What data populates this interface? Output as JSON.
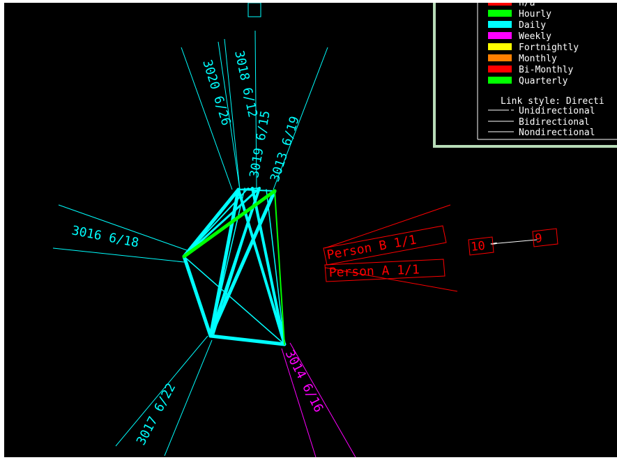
{
  "colors": {
    "background": "#000000",
    "cyan": "#00ffff",
    "green": "#00ff00",
    "magenta": "#ff00ff",
    "red": "#ff0000",
    "white": "#ffffff",
    "legend_border": "#b8dcb8"
  },
  "nodes": {
    "n3020": {
      "label": "3020 6/26"
    },
    "n3018": {
      "label": "3018 6/12"
    },
    "n3019": {
      "label": "3019 6/15"
    },
    "n3013": {
      "label": "3013 6/19"
    },
    "n3016": {
      "label": "3016 6/18"
    },
    "n3017": {
      "label": "3017 6/22"
    },
    "n3014": {
      "label": "3014 6/16"
    },
    "personB": {
      "label": "Person B 1/1"
    },
    "personA": {
      "label": "Person A 1/1"
    },
    "box10": {
      "label": "10"
    },
    "box9": {
      "label": "9"
    }
  },
  "legend": {
    "frequency": [
      {
        "label": "n/a",
        "color": "#ff0000"
      },
      {
        "label": "Hourly",
        "color": "#00ff00"
      },
      {
        "label": "Daily",
        "color": "#00ffff"
      },
      {
        "label": "Weekly",
        "color": "#ff00ff"
      },
      {
        "label": "Fortnightly",
        "color": "#ffff00"
      },
      {
        "label": "Monthly",
        "color": "#ff8000"
      },
      {
        "label": "Bi-Monthly",
        "color": "#ff0000"
      },
      {
        "label": "Quarterly",
        "color": "#00ff00"
      }
    ],
    "link_style_title": "Link style: Directi",
    "link_styles": [
      {
        "label": "Unidirectional"
      },
      {
        "label": "Bidirectional"
      },
      {
        "label": "Nondirectional"
      }
    ]
  }
}
